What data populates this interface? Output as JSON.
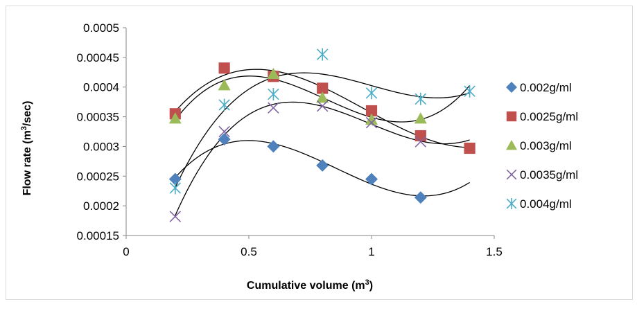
{
  "chart_data": {
    "type": "scatter",
    "title": "",
    "xlabel": {
      "text": "Cumulative volume (m",
      "sup": "3",
      "after": ")"
    },
    "ylabel": {
      "text": "Flow rate (m",
      "sup": "3",
      "after": "/sec)"
    },
    "xlim": [
      0,
      1.5
    ],
    "ylim": [
      0.00015,
      0.0005
    ],
    "x_ticks": [
      "0",
      "0.5",
      "1",
      "1.5"
    ],
    "y_ticks": [
      "0.00015",
      "0.0002",
      "0.00025",
      "0.0003",
      "0.00035",
      "0.0004",
      "0.00045",
      "0.0005"
    ],
    "grid": false,
    "legend_position": "right",
    "trendline": "polynomial",
    "series": [
      {
        "name": "0.002g/ml",
        "marker": "diamond",
        "color": "#4f81bd",
        "x": [
          0.2,
          0.4,
          0.6,
          0.8,
          1.0,
          1.2
        ],
        "y": [
          0.000245,
          0.000312,
          0.0003,
          0.000268,
          0.000245,
          0.000214
        ]
      },
      {
        "name": "0.0025g/ml",
        "marker": "square",
        "color": "#c0504d",
        "x": [
          0.2,
          0.4,
          0.6,
          0.8,
          1.0,
          1.2,
          1.4
        ],
        "y": [
          0.000355,
          0.000432,
          0.000418,
          0.000398,
          0.00036,
          0.000318,
          0.000297
        ]
      },
      {
        "name": "0.003g/ml",
        "marker": "triangle",
        "color": "#9bbb59",
        "x": [
          0.2,
          0.4,
          0.6,
          0.8,
          1.0,
          1.2
        ],
        "y": [
          0.000347,
          0.000403,
          0.000422,
          0.000382,
          0.000345,
          0.000347
        ]
      },
      {
        "name": "0.0035g/ml",
        "marker": "x",
        "color": "#8064a2",
        "x": [
          0.2,
          0.4,
          0.6,
          0.8,
          1.0,
          1.2
        ],
        "y": [
          0.000182,
          0.000325,
          0.000365,
          0.000368,
          0.00034,
          0.000308
        ]
      },
      {
        "name": "0.004g/ml",
        "marker": "star",
        "color": "#4bacc6",
        "x": [
          0.2,
          0.4,
          0.6,
          0.8,
          1.0,
          1.2,
          1.4
        ],
        "y": [
          0.00023,
          0.00037,
          0.000388,
          0.000455,
          0.00039,
          0.00038,
          0.000393
        ]
      }
    ]
  }
}
